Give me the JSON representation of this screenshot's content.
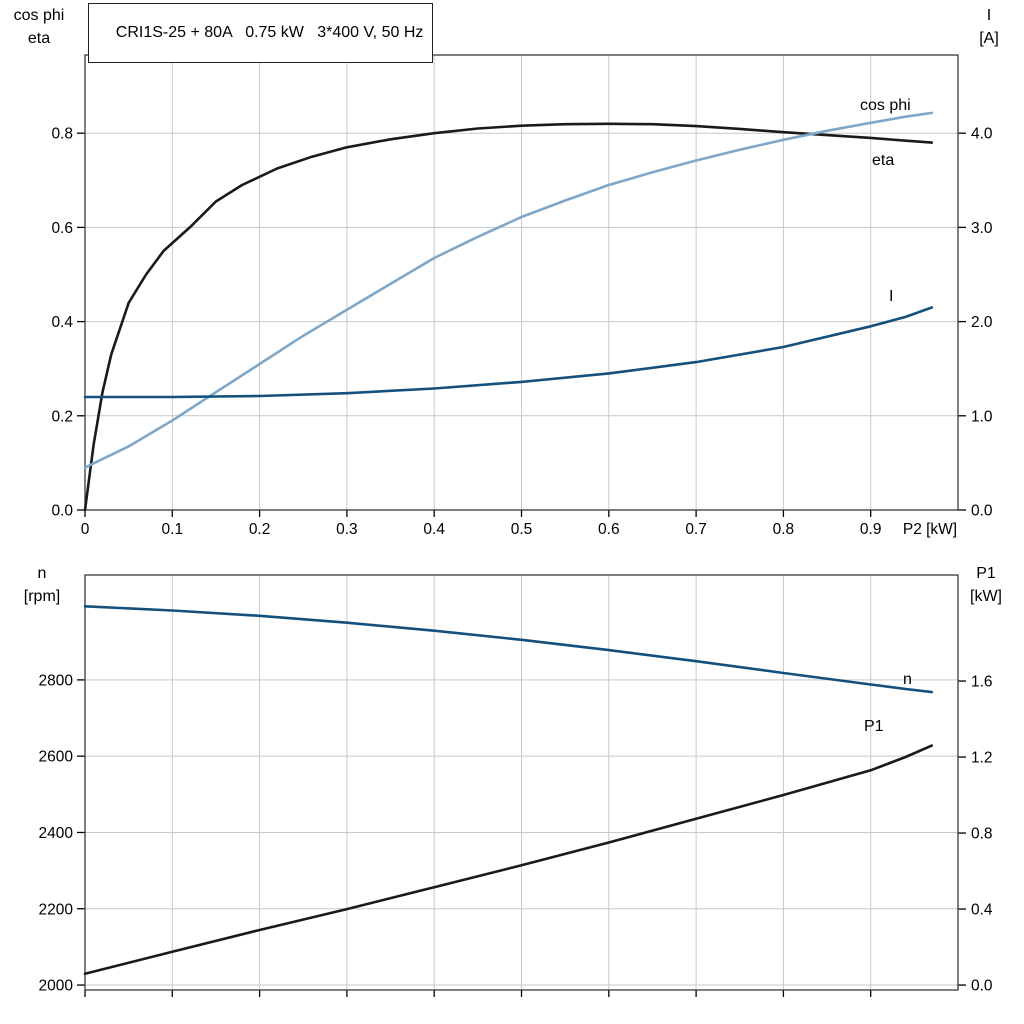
{
  "colors": {
    "black": "#1a1a1a",
    "light_blue": "#7fa7c9",
    "dark_blue": "#14507e",
    "grid": "#c9c9c9",
    "axis": "#3a3a3a"
  },
  "chart_data": [
    {
      "type": "line",
      "title": "CRI1S-25 + 80A   0.75 kW   3*400 V, 50 Hz",
      "grid": true,
      "x_axis": {
        "min": 0,
        "max": 1.0,
        "label": "P2 [kW]",
        "ticks": [
          {
            "v": 0,
            "label": "0"
          },
          {
            "v": 0.1,
            "label": "0.1"
          },
          {
            "v": 0.2,
            "label": "0.2"
          },
          {
            "v": 0.3,
            "label": "0.3"
          },
          {
            "v": 0.4,
            "label": "0.4"
          },
          {
            "v": 0.5,
            "label": "0.5"
          },
          {
            "v": 0.6,
            "label": "0.6"
          },
          {
            "v": 0.7,
            "label": "0.7"
          },
          {
            "v": 0.8,
            "label": "0.8"
          },
          {
            "v": 0.9,
            "label": "0.9"
          }
        ]
      },
      "left_axis": {
        "title_lines": [
          "cos phi",
          "eta"
        ],
        "min": 0,
        "max": 0.966,
        "ticks": [
          {
            "v": 0.0,
            "label": "0.0"
          },
          {
            "v": 0.2,
            "label": "0.2"
          },
          {
            "v": 0.4,
            "label": "0.4"
          },
          {
            "v": 0.6,
            "label": "0.6"
          },
          {
            "v": 0.8,
            "label": "0.8"
          }
        ]
      },
      "right_axis": {
        "title_lines": [
          "I",
          "[A]"
        ],
        "min": 0,
        "max": 4.83,
        "ticks": [
          {
            "v": 0.0,
            "label": "0.0"
          },
          {
            "v": 1.0,
            "label": "1.0"
          },
          {
            "v": 2.0,
            "label": "2.0"
          },
          {
            "v": 3.0,
            "label": "3.0"
          },
          {
            "v": 4.0,
            "label": "4.0"
          }
        ]
      },
      "series": [
        {
          "name": "eta",
          "axis": "left",
          "color_key": "black",
          "label": "eta",
          "x": [
            0,
            0.01,
            0.02,
            0.03,
            0.05,
            0.07,
            0.09,
            0.12,
            0.15,
            0.18,
            0.22,
            0.26,
            0.3,
            0.35,
            0.4,
            0.45,
            0.5,
            0.55,
            0.6,
            0.65,
            0.7,
            0.75,
            0.8,
            0.85,
            0.9,
            0.94,
            0.97
          ],
          "y": [
            0,
            0.14,
            0.25,
            0.33,
            0.44,
            0.5,
            0.55,
            0.6,
            0.655,
            0.69,
            0.725,
            0.75,
            0.77,
            0.787,
            0.8,
            0.81,
            0.816,
            0.819,
            0.82,
            0.819,
            0.815,
            0.809,
            0.802,
            0.796,
            0.79,
            0.784,
            0.78
          ]
        },
        {
          "name": "cos-phi",
          "axis": "left",
          "color_key": "light_blue",
          "label": "cos phi",
          "x": [
            0,
            0.05,
            0.1,
            0.15,
            0.2,
            0.25,
            0.3,
            0.35,
            0.4,
            0.45,
            0.5,
            0.55,
            0.6,
            0.65,
            0.7,
            0.75,
            0.8,
            0.85,
            0.9,
            0.94,
            0.97
          ],
          "y": [
            0.09,
            0.135,
            0.19,
            0.25,
            0.31,
            0.37,
            0.425,
            0.48,
            0.535,
            0.58,
            0.622,
            0.657,
            0.69,
            0.717,
            0.742,
            0.765,
            0.786,
            0.805,
            0.822,
            0.835,
            0.843
          ]
        },
        {
          "name": "current",
          "axis": "right",
          "color_key": "dark_blue",
          "label": "I",
          "x": [
            0,
            0.1,
            0.2,
            0.3,
            0.4,
            0.5,
            0.6,
            0.7,
            0.8,
            0.9,
            0.94,
            0.97
          ],
          "y": [
            1.2,
            1.2,
            1.21,
            1.24,
            1.29,
            1.36,
            1.45,
            1.57,
            1.73,
            1.95,
            2.05,
            2.15
          ]
        }
      ]
    },
    {
      "type": "line",
      "title": "",
      "grid": true,
      "x_axis": {
        "min": 0,
        "max": 1.0,
        "label": "",
        "ticks": [
          {
            "v": 0,
            "label": ""
          },
          {
            "v": 0.1,
            "label": ""
          },
          {
            "v": 0.2,
            "label": ""
          },
          {
            "v": 0.3,
            "label": ""
          },
          {
            "v": 0.4,
            "label": ""
          },
          {
            "v": 0.5,
            "label": ""
          },
          {
            "v": 0.6,
            "label": ""
          },
          {
            "v": 0.7,
            "label": ""
          },
          {
            "v": 0.8,
            "label": ""
          },
          {
            "v": 0.9,
            "label": ""
          }
        ]
      },
      "left_axis": {
        "title_lines": [
          "n",
          "[rpm]"
        ],
        "min": 1987,
        "max": 3075,
        "ticks": [
          {
            "v": 2000,
            "label": "2000"
          },
          {
            "v": 2200,
            "label": "2200"
          },
          {
            "v": 2400,
            "label": "2400"
          },
          {
            "v": 2600,
            "label": "2600"
          },
          {
            "v": 2800,
            "label": "2800"
          }
        ]
      },
      "right_axis": {
        "title_lines": [
          "P1",
          "[kW]"
        ],
        "min": -0.026,
        "max": 2.158,
        "ticks": [
          {
            "v": 0.0,
            "label": "0.0"
          },
          {
            "v": 0.4,
            "label": "0.4"
          },
          {
            "v": 0.8,
            "label": "0.8"
          },
          {
            "v": 1.2,
            "label": "1.2"
          },
          {
            "v": 1.6,
            "label": "1.6"
          }
        ]
      },
      "series": [
        {
          "name": "speed",
          "axis": "left",
          "color_key": "dark_blue",
          "label": "n",
          "x": [
            0,
            0.1,
            0.2,
            0.3,
            0.4,
            0.5,
            0.6,
            0.7,
            0.8,
            0.9,
            0.94,
            0.97
          ],
          "y": [
            2993,
            2982,
            2968,
            2950,
            2929,
            2905,
            2878,
            2849,
            2818,
            2788,
            2776,
            2768
          ]
        },
        {
          "name": "p1",
          "axis": "right",
          "color_key": "black",
          "label": "P1",
          "x": [
            0,
            0.1,
            0.2,
            0.3,
            0.4,
            0.5,
            0.6,
            0.7,
            0.8,
            0.9,
            0.94,
            0.97
          ],
          "y": [
            0.06,
            0.175,
            0.29,
            0.4,
            0.515,
            0.63,
            0.75,
            0.875,
            1.0,
            1.13,
            1.2,
            1.26
          ]
        }
      ]
    }
  ]
}
